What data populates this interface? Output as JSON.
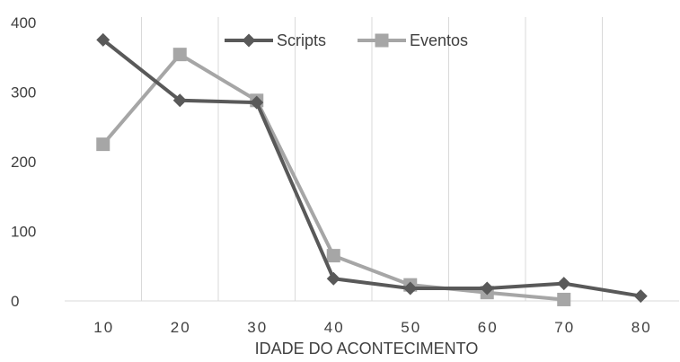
{
  "chart_data": {
    "type": "line",
    "title": "",
    "xlabel": "IDADE DO  ACONTECIMENTO",
    "ylabel": "",
    "x": [
      10,
      20,
      30,
      40,
      50,
      60,
      70,
      80
    ],
    "x_tick_labels": [
      "10",
      "20",
      "30",
      "40",
      "50",
      "60",
      "70",
      "80"
    ],
    "y_tick_labels": [
      "0",
      "100",
      "200",
      "300",
      "400"
    ],
    "ylim": [
      0,
      400
    ],
    "grid": "vertical",
    "legend_position": "top",
    "series": [
      {
        "name": "Scripts",
        "marker": "diamond",
        "color": "#595959",
        "values": [
          375,
          288,
          285,
          32,
          18,
          18,
          25,
          7
        ]
      },
      {
        "name": "Eventos",
        "marker": "square",
        "color": "#a6a6a6",
        "values": [
          225,
          354,
          288,
          65,
          23,
          12,
          2,
          null
        ]
      }
    ]
  }
}
